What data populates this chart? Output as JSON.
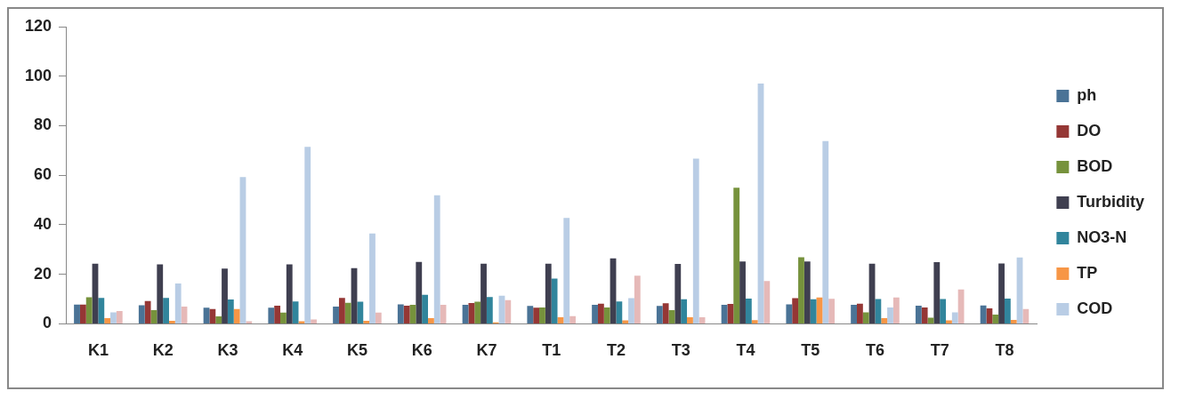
{
  "chart_data": {
    "type": "bar",
    "categories": [
      "K1",
      "K2",
      "K3",
      "K4",
      "K5",
      "K6",
      "K7",
      "T1",
      "T2",
      "T3",
      "T4",
      "T5",
      "T6",
      "T7",
      "T8"
    ],
    "series": [
      {
        "name": "ph",
        "color": "#4a7396",
        "values": [
          7.8,
          7.5,
          6.5,
          6.5,
          7,
          7.9,
          7.7,
          7.2,
          7.7,
          7.2,
          7.7,
          7.9,
          7.7,
          7.3,
          7.4
        ]
      },
      {
        "name": "DO",
        "color": "#953735",
        "values": [
          7.8,
          9.2,
          6,
          7.3,
          10.5,
          7.3,
          8.4,
          6.5,
          8.1,
          8.3,
          8,
          10.4,
          8.1,
          6.6,
          6.2
        ]
      },
      {
        "name": "BOD",
        "color": "#76923c",
        "values": [
          10.7,
          5.5,
          3,
          4.5,
          8.5,
          7.7,
          8.9,
          6.6,
          6.6,
          5.5,
          55,
          26.9,
          4.6,
          2.5,
          3.7
        ]
      },
      {
        "name": "Turbidity",
        "color": "#3f3f50",
        "values": [
          24.3,
          24,
          22.3,
          24,
          22.5,
          25,
          24.3,
          24.3,
          26.4,
          24.2,
          25.2,
          25.2,
          24.3,
          24.9,
          24.4
        ]
      },
      {
        "name": "NO3-N",
        "color": "#31859c",
        "values": [
          10.5,
          10.5,
          9.8,
          9,
          8.9,
          11.7,
          10.8,
          18.3,
          9,
          9.9,
          10.2,
          9.9,
          10,
          10,
          10.2
        ]
      },
      {
        "name": "TP",
        "color": "#f79646",
        "values": [
          2.3,
          1.2,
          6,
          1,
          1.2,
          2.3,
          0.6,
          2.7,
          1.4,
          2.7,
          1.5,
          10.6,
          2.3,
          1.4,
          1.6
        ]
      },
      {
        "name": "COD",
        "color": "#b9cde5",
        "values": [
          4.6,
          16.3,
          59.3,
          71.5,
          36.5,
          51.9,
          11.4,
          42.8,
          10.4,
          66.7,
          97,
          73.8,
          6.6,
          4.6,
          26.8
        ]
      },
      {
        "color": "#e6b9b8",
        "values": [
          5.2,
          7,
          1,
          1.8,
          4.5,
          7.7,
          9.6,
          3.1,
          19.4,
          2.7,
          17.3,
          10.1,
          10.6,
          13.9,
          6
        ]
      }
    ],
    "ylim": [
      0,
      120
    ],
    "yticks": [
      0,
      20,
      40,
      60,
      80,
      100,
      120
    ],
    "grid": false,
    "legend": "right"
  }
}
